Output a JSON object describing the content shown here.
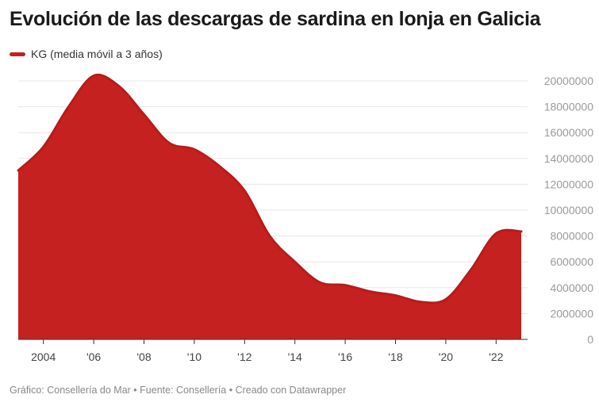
{
  "title": "Evolución de las descargas de sardina en lonja en Galicia",
  "footer": "Gráfico: Consellería do Mar • Fuente: Consellería • Creado con Datawrapper",
  "chart_data": {
    "type": "area",
    "title": "Evolución de las descargas de sardina en lonja en Galicia",
    "legend": {
      "position": "top-left",
      "entries": [
        "KG (media móvil a 3 años)"
      ]
    },
    "color": "#c42120",
    "x": [
      2003,
      2004,
      2005,
      2006,
      2007,
      2008,
      2009,
      2010,
      2011,
      2012,
      2013,
      2014,
      2015,
      2016,
      2017,
      2018,
      2019,
      2020,
      2021,
      2022,
      2023
    ],
    "series": [
      {
        "name": "KG (media móvil a 3 años)",
        "values": [
          13070000,
          14900000,
          18000000,
          20400000,
          19600000,
          17400000,
          15200000,
          14700000,
          13400000,
          11500000,
          8000000,
          6000000,
          4400000,
          4200000,
          3700000,
          3400000,
          2900000,
          3100000,
          5400000,
          8200000,
          8350000
        ]
      }
    ],
    "xlim": [
      2003,
      2023
    ],
    "ylim": [
      0,
      20000000
    ],
    "x_ticks": [
      2004,
      2006,
      2008,
      2010,
      2012,
      2014,
      2016,
      2018,
      2020,
      2022
    ],
    "x_tick_labels": [
      "2004",
      "'06",
      "'08",
      "'10",
      "'12",
      "'14",
      "'16",
      "'18",
      "'20",
      "'22"
    ],
    "y_ticks": [
      0,
      2000000,
      4000000,
      6000000,
      8000000,
      10000000,
      12000000,
      14000000,
      16000000,
      18000000,
      20000000
    ],
    "y_tick_labels": [
      "0",
      "2000000",
      "4000000",
      "6000000",
      "8000000",
      "10000000",
      "12000000",
      "14000000",
      "16000000",
      "18000000",
      "20000000"
    ],
    "y_axis_position": "right",
    "grid": true
  }
}
